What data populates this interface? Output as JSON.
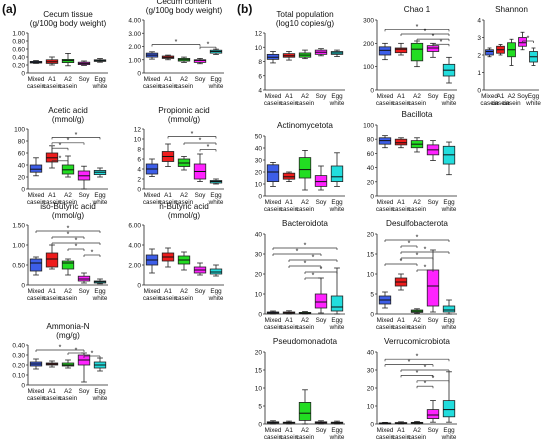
{
  "panels": {
    "a": "(a)",
    "b": "(b)"
  },
  "categories": [
    "Mixed casein",
    "A1 casein",
    "A2 casein",
    "Soy",
    "Egg white"
  ],
  "colors": [
    "#3d5ee8",
    "#ee1c1c",
    "#22dd22",
    "#ff22ff",
    "#22dddd"
  ],
  "chart_data": [
    {
      "type": "box",
      "panel": "a",
      "title": [
        "Cecum tissue",
        "(g/100g body weight)"
      ],
      "ylim": [
        0,
        1.0
      ],
      "yticks": [
        0,
        0.2,
        0.4,
        0.6,
        0.8,
        1.0
      ],
      "ytick_labels": [
        "0",
        "0.20",
        "0.40",
        "0.60",
        "0.80",
        "1.00"
      ],
      "boxes": [
        [
          0.24,
          0.25,
          0.27,
          0.29,
          0.31
        ],
        [
          0.2,
          0.24,
          0.28,
          0.33,
          0.4
        ],
        [
          0.18,
          0.26,
          0.31,
          0.34,
          0.49
        ],
        [
          0.19,
          0.21,
          0.24,
          0.27,
          0.3
        ],
        [
          0.27,
          0.29,
          0.31,
          0.33,
          0.36
        ]
      ],
      "sig": []
    },
    {
      "type": "box",
      "panel": "a",
      "title": [
        "Cecum content",
        "(g/100g body weight)"
      ],
      "ylim": [
        0,
        4.0
      ],
      "yticks": [
        0,
        1,
        2,
        3,
        4
      ],
      "ytick_labels": [
        "0",
        "1.00",
        "2.00",
        "3.00",
        "4.00"
      ],
      "boxes": [
        [
          1.05,
          1.2,
          1.35,
          1.5,
          1.6
        ],
        [
          1.0,
          1.1,
          1.18,
          1.28,
          1.35
        ],
        [
          0.8,
          0.9,
          1.0,
          1.1,
          1.2
        ],
        [
          0.7,
          0.8,
          0.95,
          1.0,
          1.1
        ],
        [
          1.4,
          1.5,
          1.62,
          1.72,
          1.8
        ]
      ],
      "sig": [
        [
          0,
          3,
          2.15
        ],
        [
          3,
          4,
          1.95
        ]
      ]
    },
    {
      "type": "box",
      "panel": "a",
      "title": [
        "Acetic acid",
        "(mmol/g)"
      ],
      "ylim": [
        0,
        100
      ],
      "yticks": [
        0,
        20,
        40,
        60,
        80,
        100
      ],
      "ytick_labels": [
        "0",
        "20",
        "40",
        "60",
        "80",
        "100"
      ],
      "boxes": [
        [
          22,
          28,
          33,
          40,
          52
        ],
        [
          35,
          45,
          52,
          60,
          72
        ],
        [
          20,
          25,
          32,
          40,
          55
        ],
        [
          0,
          15,
          22,
          30,
          38
        ],
        [
          20,
          24,
          28,
          31,
          35
        ]
      ],
      "sig": [
        [
          1,
          4,
          86
        ],
        [
          1,
          3,
          77
        ],
        [
          1,
          2,
          68
        ],
        [
          1,
          2,
          47
        ]
      ]
    },
    {
      "type": "box",
      "panel": "a",
      "title": [
        "Propionic acid",
        "(mmol/g)"
      ],
      "ylim": [
        0,
        12
      ],
      "yticks": [
        0,
        2,
        4,
        6,
        8,
        10,
        12
      ],
      "ytick_labels": [
        "0",
        "2",
        "4",
        "6",
        "8",
        "10",
        "12"
      ],
      "boxes": [
        [
          2.5,
          3.0,
          4.0,
          5.0,
          6.0
        ],
        [
          4.5,
          5.5,
          6.5,
          7.5,
          9.0
        ],
        [
          3.8,
          4.5,
          5.2,
          6.0,
          6.5
        ],
        [
          1.5,
          2.0,
          3.5,
          5.0,
          7.0
        ],
        [
          1.0,
          1.2,
          1.5,
          1.7,
          2.0
        ]
      ],
      "sig": [
        [
          1,
          4,
          10.5
        ],
        [
          2,
          4,
          9.2
        ],
        [
          3,
          4,
          7.9
        ]
      ]
    },
    {
      "type": "box",
      "panel": "a",
      "title": [
        "iso-Butyric acid",
        "(mmol/g)"
      ],
      "ylim": [
        0,
        1.5
      ],
      "yticks": [
        0,
        0.5,
        1.0,
        1.5
      ],
      "ytick_labels": [
        "0",
        "0.50",
        "1.00",
        "1.50"
      ],
      "boxes": [
        [
          0.25,
          0.35,
          0.55,
          0.65,
          0.7
        ],
        [
          0.4,
          0.45,
          0.65,
          0.8,
          1.0
        ],
        [
          0.25,
          0.4,
          0.55,
          0.6,
          0.65
        ],
        [
          0.05,
          0.1,
          0.15,
          0.22,
          0.3
        ],
        [
          0.03,
          0.05,
          0.08,
          0.1,
          0.15
        ]
      ],
      "sig": [
        [
          0,
          4,
          1.35
        ],
        [
          1,
          3,
          1.2
        ],
        [
          1,
          4,
          1.05
        ],
        [
          2,
          3,
          0.9
        ],
        [
          3,
          4,
          0.75
        ]
      ]
    },
    {
      "type": "box",
      "panel": "a",
      "title": [
        "n-Butyric acid",
        "(mmol/g)"
      ],
      "ylim": [
        0,
        6
      ],
      "yticks": [
        0,
        2,
        4,
        6
      ],
      "ytick_labels": [
        "0",
        "2.00",
        "4.00",
        "6.00"
      ],
      "boxes": [
        [
          1.2,
          2.0,
          2.5,
          3.0,
          3.6
        ],
        [
          1.8,
          2.4,
          2.8,
          3.2,
          3.7
        ],
        [
          1.5,
          2.1,
          2.5,
          2.9,
          3.3
        ],
        [
          1.0,
          1.2,
          1.5,
          1.8,
          2.2
        ],
        [
          0.9,
          1.1,
          1.3,
          1.6,
          2.0
        ]
      ],
      "sig": []
    },
    {
      "type": "box",
      "panel": "a",
      "title": [
        "Ammonia-N",
        "(mg/g)"
      ],
      "ylim": [
        0,
        0.4
      ],
      "yticks": [
        0,
        0.1,
        0.2,
        0.3,
        0.4
      ],
      "ytick_labels": [
        "0",
        "0.10",
        "0.20",
        "0.30",
        "0.40"
      ],
      "boxes": [
        [
          0.16,
          0.19,
          0.21,
          0.23,
          0.26
        ],
        [
          0.18,
          0.2,
          0.21,
          0.22,
          0.24
        ],
        [
          0.17,
          0.19,
          0.2,
          0.22,
          0.25
        ],
        [
          0.03,
          0.2,
          0.25,
          0.3,
          0.32
        ],
        [
          0.14,
          0.17,
          0.2,
          0.23,
          0.27
        ]
      ],
      "sig": [
        [
          0,
          3,
          0.35
        ],
        [
          2,
          3,
          0.32
        ],
        [
          3,
          4,
          0.29
        ]
      ]
    },
    {
      "type": "box",
      "panel": "b",
      "title": [
        "Total population",
        "(log10 copies/g)"
      ],
      "ylim": [
        4,
        12
      ],
      "yticks": [
        4,
        6,
        8,
        10,
        12
      ],
      "ytick_labels": [
        "4",
        "6",
        "8",
        "10",
        "12"
      ],
      "boxes": [
        [
          7.8,
          8.3,
          8.6,
          9.0,
          9.4
        ],
        [
          8.2,
          8.6,
          8.8,
          9.1,
          9.4
        ],
        [
          8.4,
          8.6,
          8.9,
          9.2,
          9.6
        ],
        [
          8.8,
          9.0,
          9.3,
          9.6,
          9.8
        ],
        [
          8.7,
          9.0,
          9.2,
          9.4,
          9.6
        ]
      ],
      "sig": []
    },
    {
      "type": "box",
      "panel": "b",
      "title": [
        "Chao 1"
      ],
      "ylim": [
        0,
        300
      ],
      "yticks": [
        0,
        100,
        200,
        300
      ],
      "ytick_labels": [
        "0",
        "100",
        "200",
        "300"
      ],
      "boxes": [
        [
          130,
          150,
          170,
          185,
          200
        ],
        [
          150,
          160,
          175,
          180,
          200
        ],
        [
          100,
          125,
          175,
          200,
          210
        ],
        [
          140,
          165,
          180,
          190,
          200
        ],
        [
          30,
          60,
          85,
          110,
          140
        ]
      ],
      "sig": [
        [
          0,
          4,
          260
        ],
        [
          1,
          4,
          240
        ],
        [
          2,
          4,
          218
        ],
        [
          3,
          4,
          196
        ]
      ]
    },
    {
      "type": "box",
      "panel": "b",
      "title": [
        "Shannon"
      ],
      "ylim": [
        0,
        4
      ],
      "yticks": [
        0,
        1,
        2,
        3,
        4
      ],
      "ytick_labels": [
        "0",
        "1",
        "2",
        "3",
        "4"
      ],
      "boxes": [
        [
          1.9,
          2.0,
          2.2,
          2.3,
          2.4
        ],
        [
          2.0,
          2.1,
          2.3,
          2.5,
          2.6
        ],
        [
          1.4,
          1.9,
          2.3,
          2.7,
          2.9
        ],
        [
          2.3,
          2.5,
          2.7,
          3.0,
          3.3
        ],
        [
          1.4,
          1.6,
          1.9,
          2.2,
          2.4
        ]
      ],
      "sig": [
        [
          3,
          4,
          2.8
        ]
      ]
    },
    {
      "type": "box",
      "panel": "b",
      "title": [
        "Actinomycetota"
      ],
      "ylim": [
        0,
        50
      ],
      "yticks": [
        0,
        10,
        20,
        30,
        40,
        50
      ],
      "ytick_labels": [
        "0",
        "10",
        "20",
        "30",
        "40",
        "50"
      ],
      "boxes": [
        [
          8,
          12,
          20,
          26,
          28
        ],
        [
          12,
          14,
          16,
          19,
          20
        ],
        [
          5,
          15,
          22,
          32,
          38
        ],
        [
          5,
          8,
          12,
          17,
          25
        ],
        [
          8,
          12,
          16,
          25,
          36
        ]
      ],
      "sig": []
    },
    {
      "type": "box",
      "panel": "b",
      "title": [
        "Bacillota"
      ],
      "ylim": [
        0,
        100
      ],
      "yticks": [
        0,
        20,
        40,
        60,
        80,
        100
      ],
      "ytick_labels": [
        "0",
        "20",
        "40",
        "60",
        "80",
        "100"
      ],
      "boxes": [
        [
          68,
          73,
          78,
          82,
          85
        ],
        [
          68,
          72,
          75,
          80,
          82
        ],
        [
          62,
          68,
          73,
          78,
          82
        ],
        [
          50,
          58,
          65,
          72,
          78
        ],
        [
          30,
          45,
          58,
          70,
          76
        ]
      ],
      "sig": []
    },
    {
      "type": "box",
      "panel": "b",
      "title": [
        "Bacteroidota"
      ],
      "ylim": [
        0,
        40
      ],
      "yticks": [
        0,
        10,
        20,
        30,
        40
      ],
      "ytick_labels": [
        "0",
        "10",
        "20",
        "30",
        "40"
      ],
      "boxes": [
        [
          0,
          0.3,
          0.6,
          1.0,
          1.5
        ],
        [
          0,
          0.3,
          0.6,
          1.0,
          1.6
        ],
        [
          0,
          0.2,
          0.4,
          0.8,
          1.2
        ],
        [
          0.5,
          3,
          6,
          10,
          18
        ],
        [
          0,
          1.5,
          3.5,
          9,
          23
        ]
      ],
      "sig": [
        [
          0,
          4,
          33
        ],
        [
          0,
          3,
          30
        ],
        [
          1,
          4,
          27
        ],
        [
          1,
          3,
          24
        ],
        [
          2,
          4,
          21
        ],
        [
          2,
          3,
          18
        ]
      ]
    },
    {
      "type": "box",
      "panel": "b",
      "title": [
        "Desulfobacterota"
      ],
      "ylim": [
        0,
        20
      ],
      "yticks": [
        0,
        5,
        10,
        15,
        20
      ],
      "ytick_labels": [
        "0",
        "5",
        "10",
        "15",
        "20"
      ],
      "boxes": [
        [
          1.5,
          2.5,
          3.5,
          4.5,
          5.5
        ],
        [
          6,
          7,
          8,
          9,
          10
        ],
        [
          0.2,
          0.4,
          0.7,
          1.0,
          1.3
        ],
        [
          0.5,
          2,
          7,
          11,
          16
        ],
        [
          0,
          0.5,
          1.0,
          2.0,
          3.5
        ]
      ],
      "sig": [
        [
          0,
          4,
          18.5
        ],
        [
          1,
          2,
          17
        ],
        [
          1,
          4,
          15.5
        ],
        [
          1,
          3,
          14
        ],
        [
          0,
          2,
          12.5
        ],
        [
          2,
          3,
          11
        ]
      ]
    },
    {
      "type": "box",
      "panel": "b",
      "title": [
        "Pseudomonadota"
      ],
      "ylim": [
        0,
        20
      ],
      "yticks": [
        0,
        5,
        10,
        15,
        20
      ],
      "ytick_labels": [
        "0",
        "5",
        "10",
        "15",
        "20"
      ],
      "boxes": [
        [
          0,
          0.2,
          0.4,
          0.6,
          0.9
        ],
        [
          0,
          0.2,
          0.4,
          0.5,
          0.8
        ],
        [
          0,
          1,
          3,
          6,
          9.5
        ],
        [
          0,
          0.2,
          0.4,
          0.6,
          0.9
        ],
        [
          0,
          0.2,
          0.3,
          0.5,
          0.8
        ]
      ],
      "sig": []
    },
    {
      "type": "box",
      "panel": "b",
      "title": [
        "Verrucomicrobiota"
      ],
      "ylim": [
        0,
        40
      ],
      "yticks": [
        0,
        10,
        20,
        30,
        40
      ],
      "ytick_labels": [
        "0",
        "10",
        "20",
        "30",
        "40"
      ],
      "boxes": [
        [
          0,
          0.2,
          0.4,
          0.6,
          0.9
        ],
        [
          0,
          0.3,
          0.5,
          0.8,
          1.2
        ],
        [
          0,
          0.3,
          0.6,
          0.9,
          1.4
        ],
        [
          1,
          3,
          5,
          8,
          13
        ],
        [
          1,
          4,
          8,
          13,
          29
        ]
      ],
      "sig": [
        [
          0,
          4,
          36
        ],
        [
          0,
          3,
          33
        ],
        [
          1,
          4,
          30
        ],
        [
          1,
          3,
          27
        ],
        [
          2,
          4,
          24
        ],
        [
          2,
          3,
          21
        ]
      ]
    }
  ]
}
